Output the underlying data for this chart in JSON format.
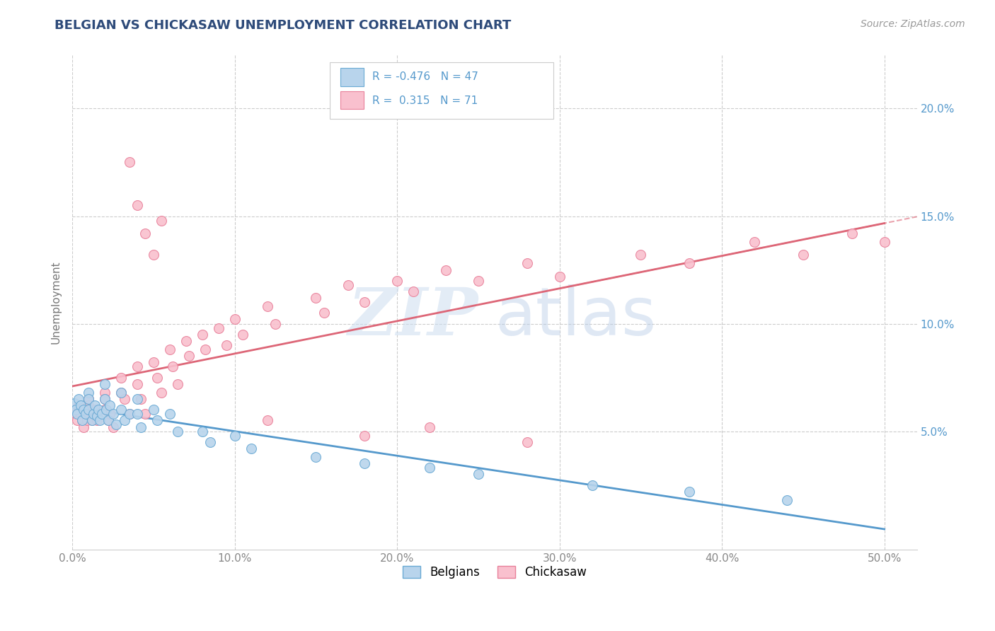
{
  "title": "BELGIAN VS CHICKASAW UNEMPLOYMENT CORRELATION CHART",
  "source_text": "Source: ZipAtlas.com",
  "ylabel": "Unemployment",
  "xlim": [
    0.0,
    0.52
  ],
  "ylim": [
    -0.005,
    0.225
  ],
  "xticks": [
    0.0,
    0.1,
    0.2,
    0.3,
    0.4,
    0.5
  ],
  "xticklabels": [
    "0.0%",
    "10.0%",
    "20.0%",
    "30.0%",
    "40.0%",
    "50.0%"
  ],
  "yticks": [
    0.05,
    0.1,
    0.15,
    0.2
  ],
  "yticklabels": [
    "5.0%",
    "10.0%",
    "15.0%",
    "20.0%"
  ],
  "belgian_color": "#b8d4ec",
  "chickasaw_color": "#f9c0ce",
  "belgian_edge": "#6aaad4",
  "chickasaw_edge": "#e8809a",
  "trend_belgian_color": "#5599cc",
  "trend_chickasaw_color": "#dd6677",
  "r_belgian": -0.476,
  "n_belgian": 47,
  "r_chickasaw": 0.315,
  "n_chickasaw": 71,
  "belgian_x": [
    0.001,
    0.002,
    0.003,
    0.004,
    0.005,
    0.006,
    0.007,
    0.008,
    0.01,
    0.01,
    0.01,
    0.012,
    0.013,
    0.014,
    0.015,
    0.016,
    0.017,
    0.018,
    0.02,
    0.02,
    0.021,
    0.022,
    0.023,
    0.025,
    0.027,
    0.03,
    0.03,
    0.032,
    0.035,
    0.04,
    0.04,
    0.042,
    0.05,
    0.052,
    0.06,
    0.065,
    0.08,
    0.085,
    0.1,
    0.11,
    0.15,
    0.18,
    0.22,
    0.25,
    0.32,
    0.38,
    0.44
  ],
  "belgian_y": [
    0.063,
    0.06,
    0.058,
    0.065,
    0.062,
    0.055,
    0.06,
    0.058,
    0.068,
    0.065,
    0.06,
    0.055,
    0.058,
    0.062,
    0.057,
    0.06,
    0.055,
    0.058,
    0.072,
    0.065,
    0.06,
    0.055,
    0.062,
    0.058,
    0.053,
    0.068,
    0.06,
    0.055,
    0.058,
    0.065,
    0.058,
    0.052,
    0.06,
    0.055,
    0.058,
    0.05,
    0.05,
    0.045,
    0.048,
    0.042,
    0.038,
    0.035,
    0.033,
    0.03,
    0.025,
    0.022,
    0.018
  ],
  "chickasaw_x": [
    0.001,
    0.002,
    0.003,
    0.004,
    0.005,
    0.006,
    0.007,
    0.008,
    0.009,
    0.01,
    0.01,
    0.01,
    0.012,
    0.013,
    0.014,
    0.015,
    0.02,
    0.02,
    0.02,
    0.022,
    0.023,
    0.025,
    0.03,
    0.03,
    0.032,
    0.035,
    0.04,
    0.04,
    0.042,
    0.045,
    0.05,
    0.052,
    0.055,
    0.06,
    0.062,
    0.065,
    0.07,
    0.072,
    0.08,
    0.082,
    0.09,
    0.095,
    0.1,
    0.105,
    0.12,
    0.125,
    0.15,
    0.155,
    0.17,
    0.18,
    0.2,
    0.21,
    0.23,
    0.25,
    0.28,
    0.3,
    0.35,
    0.38,
    0.42,
    0.45,
    0.48,
    0.5,
    0.035,
    0.04,
    0.045,
    0.05,
    0.055,
    0.12,
    0.18,
    0.22,
    0.28
  ],
  "chickasaw_y": [
    0.06,
    0.058,
    0.055,
    0.062,
    0.058,
    0.055,
    0.052,
    0.06,
    0.055,
    0.065,
    0.062,
    0.058,
    0.055,
    0.058,
    0.06,
    0.055,
    0.068,
    0.065,
    0.06,
    0.055,
    0.058,
    0.052,
    0.075,
    0.068,
    0.065,
    0.058,
    0.08,
    0.072,
    0.065,
    0.058,
    0.082,
    0.075,
    0.068,
    0.088,
    0.08,
    0.072,
    0.092,
    0.085,
    0.095,
    0.088,
    0.098,
    0.09,
    0.102,
    0.095,
    0.108,
    0.1,
    0.112,
    0.105,
    0.118,
    0.11,
    0.12,
    0.115,
    0.125,
    0.12,
    0.128,
    0.122,
    0.132,
    0.128,
    0.138,
    0.132,
    0.142,
    0.138,
    0.175,
    0.155,
    0.142,
    0.132,
    0.148,
    0.055,
    0.048,
    0.052,
    0.045
  ],
  "watermark_zip": "ZIP",
  "watermark_atlas": "atlas",
  "title_color": "#2e4b7a",
  "axis_label_color": "#777777",
  "tick_color": "#888888",
  "grid_color": "#cccccc",
  "right_tick_color": "#5599cc"
}
